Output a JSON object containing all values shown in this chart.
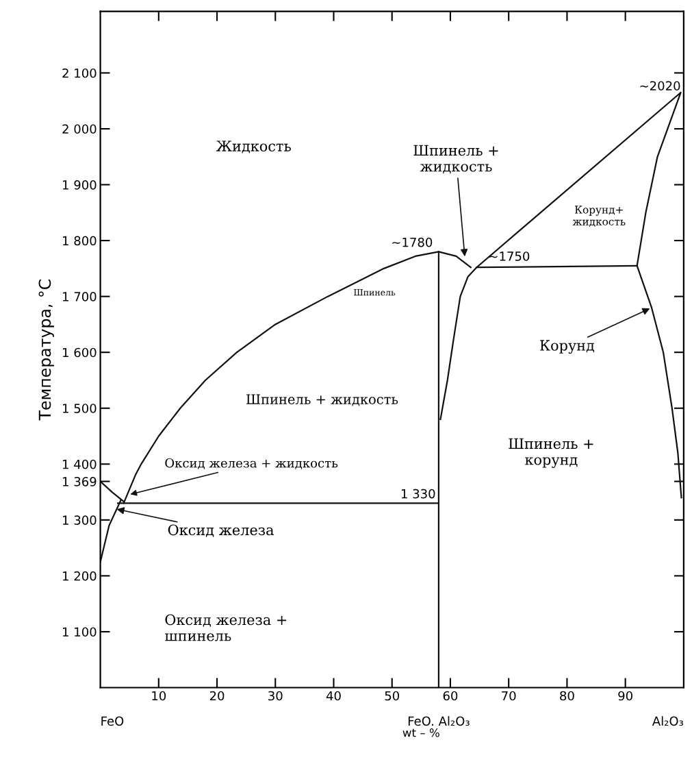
{
  "chart_data": {
    "type": "line",
    "xlabel": "wt – %",
    "ylabel": "Температура, °C",
    "xlim": [
      0,
      100
    ],
    "ylim": [
      1000,
      2210
    ],
    "xticks": [
      10,
      20,
      30,
      40,
      50,
      60,
      70,
      80,
      90
    ],
    "yticks": [
      {
        "value": 1100,
        "label": "1 100"
      },
      {
        "value": 1200,
        "label": "1 200"
      },
      {
        "value": 1300,
        "label": "1 300"
      },
      {
        "value": 1369,
        "label": "1 369"
      },
      {
        "value": 1400,
        "label": "1 400"
      },
      {
        "value": 1500,
        "label": "1 500"
      },
      {
        "value": 1600,
        "label": "1 600"
      },
      {
        "value": 1700,
        "label": "1 700"
      },
      {
        "value": 1800,
        "label": "1 800"
      },
      {
        "value": 1900,
        "label": "1 900"
      },
      {
        "value": 2000,
        "label": "2 000"
      },
      {
        "value": 2100,
        "label": "2 100"
      }
    ],
    "grid": false,
    "legend": false,
    "marker": "none",
    "line_style": "solid",
    "series": [
      {
        "color": "#111111",
        "x": [
          0,
          2,
          4
        ],
        "values": [
          1369,
          1350,
          1333
        ]
      },
      {
        "color": "#111111",
        "x": [
          0,
          1.5,
          3.5
        ],
        "values": [
          1225,
          1290,
          1335
        ]
      },
      {
        "color": "#111111",
        "x": [
          4,
          6,
          7,
          10,
          13.7,
          18,
          23.4,
          30,
          39,
          48.6,
          54,
          58,
          61,
          63.5
        ],
        "values": [
          1330,
          1380,
          1400,
          1450,
          1500,
          1550,
          1600,
          1650,
          1700,
          1750,
          1772,
          1780,
          1772,
          1752
        ]
      },
      {
        "color": "#111111",
        "x": [
          3,
          58
        ],
        "values": [
          1330,
          1330
        ]
      },
      {
        "color": "#111111",
        "x": [
          58,
          58
        ],
        "values": [
          1000,
          1780
        ]
      },
      {
        "color": "#111111",
        "x": [
          58.3,
          59.5,
          60.5,
          61.7,
          63,
          64.5,
          99.5,
          95.5,
          93.5,
          92,
          94.5,
          96.5,
          98,
          99,
          99.6
        ],
        "values": [
          1480,
          1550,
          1620,
          1700,
          1735,
          1752,
          2065,
          1950,
          1850,
          1755,
          1680,
          1600,
          1500,
          1420,
          1340
        ]
      },
      {
        "color": "#111111",
        "x": [
          64.5,
          92
        ],
        "values": [
          1752,
          1755
        ]
      }
    ],
    "annotations": [
      "Жидкость",
      {
        "text": "Шпинель +\nжидкость",
        "x": 62.5,
        "y": 1768
      },
      "Корунд+\nжидкость",
      {
        "text": "~2020",
        "x": 99.5,
        "y": 2065
      },
      {
        "text": "~1780",
        "x": 58,
        "y": 1780
      },
      {
        "text": "~1750",
        "x": 64.5,
        "y": 1752
      },
      "Шпинель",
      {
        "text": "Корунд",
        "x": 94.5,
        "y": 1680
      },
      "Шпинель + жидкость",
      "Шпинель +\nкорунд",
      {
        "text": "Оксид железа + жидкость",
        "x": 4.8,
        "y": 1345
      },
      {
        "text": "1 330",
        "x": 58,
        "y": 1330
      },
      {
        "text": "Оксид железа",
        "x": 2.5,
        "y": 1320
      },
      "Оксид железа +\nшпинель",
      "FeO",
      "FeO. Al₂O₃",
      "Al₂O₃"
    ]
  }
}
